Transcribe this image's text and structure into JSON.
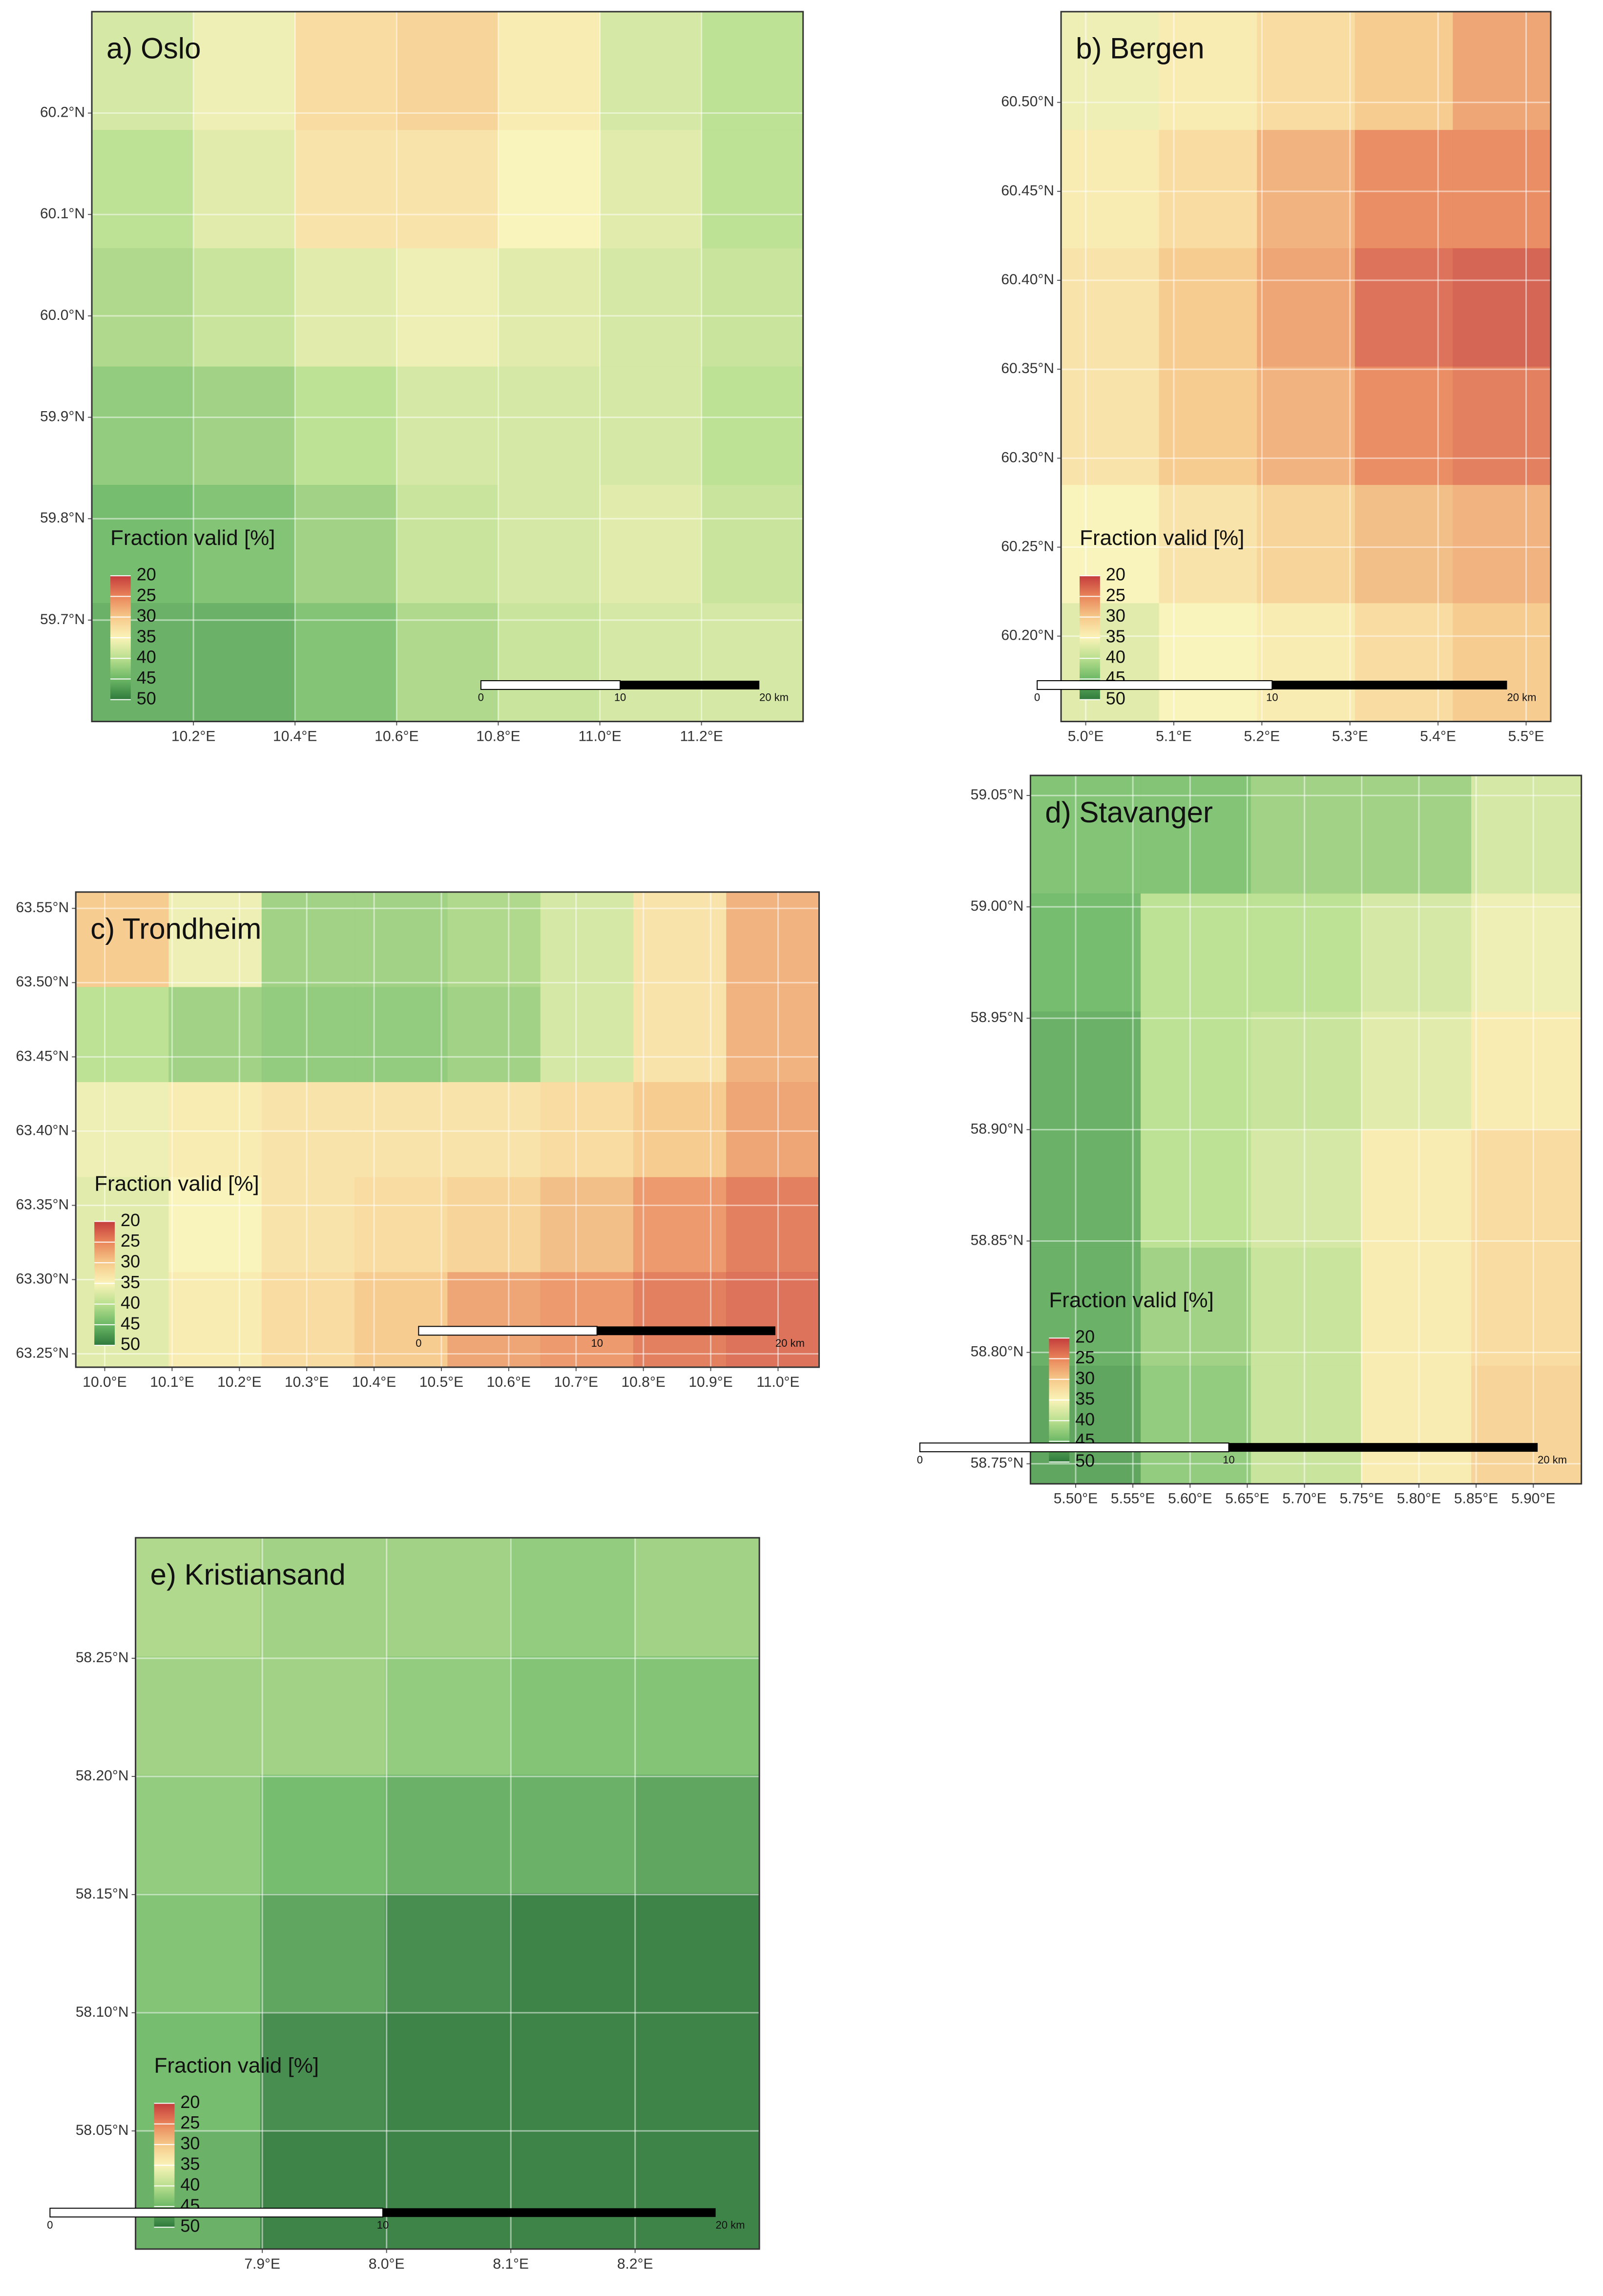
{
  "color_scale": {
    "title": "Fraction valid [%]",
    "ticks": [
      20,
      25,
      30,
      35,
      40,
      45,
      50
    ],
    "colors": [
      "#c43c3c",
      "#e9855a",
      "#f6c98a",
      "#faf3b8",
      "#b9df8e",
      "#6cb866",
      "#2f7a3b"
    ]
  },
  "panels": [
    {
      "title": "a) Oslo",
      "xlim": [
        10.0,
        11.4
      ],
      "ylim": [
        59.6,
        60.3
      ],
      "xticks": [
        {
          "value": 10.2,
          "label": "10.2°E"
        },
        {
          "value": 10.4,
          "label": "10.4°E"
        },
        {
          "value": 10.6,
          "label": "10.6°E"
        },
        {
          "value": 10.8,
          "label": "10.8°E"
        },
        {
          "value": 11.0,
          "label": "11.0°E"
        },
        {
          "value": 11.2,
          "label": "11.2°E"
        }
      ],
      "yticks": [
        {
          "value": 59.7,
          "label": "59.7°N"
        },
        {
          "value": 59.8,
          "label": "59.8°N"
        },
        {
          "value": 59.9,
          "label": "59.9°N"
        },
        {
          "value": 60.0,
          "label": "60.0°N"
        },
        {
          "value": 60.1,
          "label": "60.1°N"
        },
        {
          "value": 60.2,
          "label": "60.2°N"
        }
      ],
      "scale_bar": [
        "0",
        "10",
        "20 km"
      ],
      "grid": [
        [
          38,
          36,
          32,
          31,
          34,
          38,
          40
        ],
        [
          40,
          37,
          33,
          33,
          35,
          37,
          40
        ],
        [
          41,
          39,
          37,
          36,
          37,
          38,
          39
        ],
        [
          43,
          42,
          40,
          38,
          38,
          38,
          40
        ],
        [
          45,
          44,
          42,
          39,
          38,
          37,
          39
        ],
        [
          46,
          46,
          44,
          41,
          39,
          38,
          38
        ]
      ]
    },
    {
      "title": "b) Bergen",
      "xlim": [
        4.972,
        5.528
      ],
      "ylim": [
        60.152,
        60.551
      ],
      "xticks": [
        {
          "value": 5.0,
          "label": "5.0°E"
        },
        {
          "value": 5.1,
          "label": "5.1°E"
        },
        {
          "value": 5.2,
          "label": "5.2°E"
        },
        {
          "value": 5.3,
          "label": "5.3°E"
        },
        {
          "value": 5.4,
          "label": "5.4°E"
        },
        {
          "value": 5.5,
          "label": "5.5°E"
        }
      ],
      "yticks": [
        {
          "value": 60.2,
          "label": "60.20°N"
        },
        {
          "value": 60.25,
          "label": "60.25°N"
        },
        {
          "value": 60.3,
          "label": "60.30°N"
        },
        {
          "value": 60.35,
          "label": "60.35°N"
        },
        {
          "value": 60.4,
          "label": "60.40°N"
        },
        {
          "value": 60.45,
          "label": "60.45°N"
        },
        {
          "value": 60.5,
          "label": "60.50°N"
        }
      ],
      "scale_bar": [
        "0",
        "10",
        "20 km"
      ],
      "grid": [
        [
          36,
          34,
          32,
          30,
          27
        ],
        [
          34,
          32,
          28,
          25,
          25
        ],
        [
          33,
          30,
          27,
          23,
          22
        ],
        [
          33,
          30,
          28,
          25,
          24
        ],
        [
          35,
          33,
          31,
          29,
          28
        ],
        [
          37,
          35,
          34,
          32,
          30
        ]
      ]
    },
    {
      "title": "c) Trondheim",
      "xlim": [
        9.957,
        11.061
      ],
      "ylim": [
        63.241,
        63.561
      ],
      "xticks": [
        {
          "value": 10.0,
          "label": "10.0°E"
        },
        {
          "value": 10.1,
          "label": "10.1°E"
        },
        {
          "value": 10.2,
          "label": "10.2°E"
        },
        {
          "value": 10.3,
          "label": "10.3°E"
        },
        {
          "value": 10.4,
          "label": "10.4°E"
        },
        {
          "value": 10.5,
          "label": "10.5°E"
        },
        {
          "value": 10.6,
          "label": "10.6°E"
        },
        {
          "value": 10.7,
          "label": "10.7°E"
        },
        {
          "value": 10.8,
          "label": "10.8°E"
        },
        {
          "value": 10.9,
          "label": "10.9°E"
        },
        {
          "value": 11.0,
          "label": "11.0°E"
        }
      ],
      "yticks": [
        {
          "value": 63.25,
          "label": "63.25°N"
        },
        {
          "value": 63.3,
          "label": "63.30°N"
        },
        {
          "value": 63.35,
          "label": "63.35°N"
        },
        {
          "value": 63.4,
          "label": "63.40°N"
        },
        {
          "value": 63.45,
          "label": "63.45°N"
        },
        {
          "value": 63.5,
          "label": "63.50°N"
        },
        {
          "value": 63.55,
          "label": "63.55°N"
        }
      ],
      "scale_bar": [
        "0",
        "10",
        "20 km"
      ],
      "grid": [
        [
          30,
          36,
          42,
          42,
          41,
          38,
          33,
          28
        ],
        [
          40,
          42,
          43,
          43,
          42,
          38,
          33,
          28
        ],
        [
          36,
          34,
          33,
          33,
          33,
          32,
          30,
          27
        ],
        [
          37,
          35,
          33,
          32,
          31,
          29,
          26,
          24
        ],
        [
          37,
          34,
          32,
          30,
          27,
          26,
          24,
          23
        ]
      ]
    },
    {
      "title": "d) Stavanger",
      "xlim": [
        5.4605,
        5.942
      ],
      "ylim": [
        58.741,
        59.059
      ],
      "xticks": [
        {
          "value": 5.5,
          "label": "5.50°E"
        },
        {
          "value": 5.55,
          "label": "5.55°E"
        },
        {
          "value": 5.6,
          "label": "5.60°E"
        },
        {
          "value": 5.65,
          "label": "5.65°E"
        },
        {
          "value": 5.7,
          "label": "5.70°E"
        },
        {
          "value": 5.75,
          "label": "5.75°E"
        },
        {
          "value": 5.8,
          "label": "5.80°E"
        },
        {
          "value": 5.85,
          "label": "5.85°E"
        },
        {
          "value": 5.9,
          "label": "5.90°E"
        }
      ],
      "yticks": [
        {
          "value": 58.75,
          "label": "58.75°N"
        },
        {
          "value": 58.8,
          "label": "58.80°N"
        },
        {
          "value": 58.85,
          "label": "58.85°N"
        },
        {
          "value": 58.9,
          "label": "58.90°N"
        },
        {
          "value": 58.95,
          "label": "58.95°N"
        },
        {
          "value": 59.0,
          "label": "59.00°N"
        },
        {
          "value": 59.05,
          "label": "59.05°N"
        }
      ],
      "scale_bar": [
        "0",
        "10",
        "20 km"
      ],
      "grid": [
        [
          44,
          44,
          42,
          42,
          38
        ],
        [
          45,
          40,
          40,
          38,
          36
        ],
        [
          46,
          40,
          39,
          37,
          34
        ],
        [
          46,
          40,
          38,
          34,
          32
        ],
        [
          46,
          42,
          39,
          34,
          32
        ],
        [
          47,
          43,
          39,
          34,
          31
        ]
      ]
    },
    {
      "title": "e) Kristiansand",
      "xlim": [
        7.798,
        8.3
      ],
      "ylim": [
        58.0,
        58.301
      ],
      "xticks": [
        {
          "value": 7.9,
          "label": "7.9°E"
        },
        {
          "value": 8.0,
          "label": "8.0°E"
        },
        {
          "value": 8.1,
          "label": "8.1°E"
        },
        {
          "value": 8.2,
          "label": "8.2°E"
        }
      ],
      "yticks": [
        {
          "value": 58.05,
          "label": "58.05°N"
        },
        {
          "value": 58.1,
          "label": "58.10°N"
        },
        {
          "value": 58.15,
          "label": "58.15°N"
        },
        {
          "value": 58.2,
          "label": "58.20°N"
        },
        {
          "value": 58.25,
          "label": "58.25°N"
        }
      ],
      "scale_bar": [
        "0",
        "10",
        "20 km"
      ],
      "grid": [
        [
          41,
          42,
          42,
          43,
          42
        ],
        [
          42,
          42,
          43,
          44,
          44
        ],
        [
          43,
          45,
          46,
          46,
          47
        ],
        [
          44,
          47,
          49,
          50,
          50
        ],
        [
          45,
          49,
          50,
          50,
          50
        ],
        [
          46,
          50,
          50,
          50,
          50
        ]
      ]
    }
  ]
}
